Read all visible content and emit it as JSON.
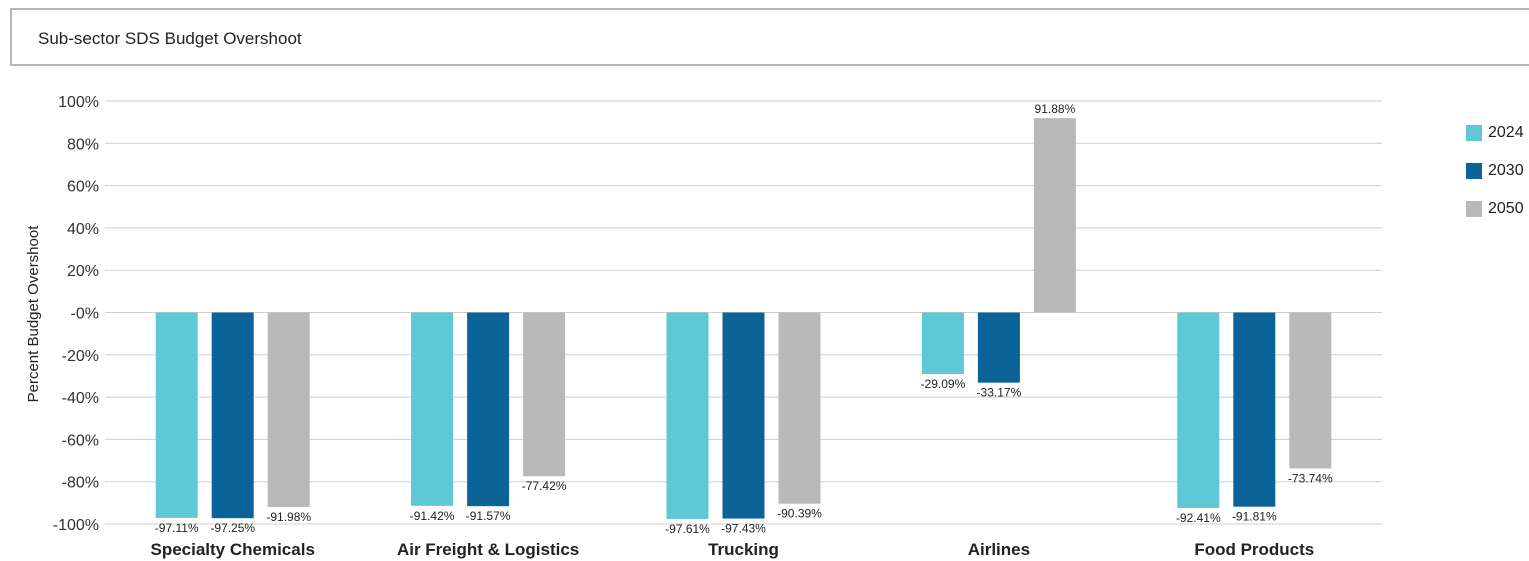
{
  "panel": {
    "title": "Sub-sector SDS Budget Overshoot"
  },
  "colors": {
    "2024": "#5ec8d6",
    "2030": "#0c6398",
    "2050": "#b9b9b9",
    "grid": "#cfcfcf"
  },
  "chart_data": {
    "type": "bar",
    "title": "Sub-sector SDS Budget Overshoot",
    "xlabel": "",
    "ylabel": "Percent Budget Overshoot",
    "ylim": [
      -100,
      100
    ],
    "y_ticks": [
      "100%",
      "80%",
      "60%",
      "40%",
      "20%",
      "-0%",
      "-20%",
      "-40%",
      "-60%",
      "-80%",
      "-100%"
    ],
    "grid": true,
    "legend_position": "right",
    "categories": [
      "Specialty Chemicals",
      "Air Freight & Logistics",
      "Trucking",
      "Airlines",
      "Food Products"
    ],
    "series": [
      {
        "name": "2024",
        "values": [
          -97.11,
          -91.42,
          -97.61,
          -29.09,
          -92.41
        ],
        "labels": [
          "-97.11%",
          "-91.42%",
          "-97.61%",
          "-29.09%",
          "-92.41%"
        ]
      },
      {
        "name": "2030",
        "values": [
          -97.25,
          -91.57,
          -97.43,
          -33.17,
          -91.81
        ],
        "labels": [
          "-97.25%",
          "-91.57%",
          "-97.43%",
          "-33.17%",
          "-91.81%"
        ]
      },
      {
        "name": "2050",
        "values": [
          -91.98,
          -77.42,
          -90.39,
          91.88,
          -73.74
        ],
        "labels": [
          "-91.98%",
          "-77.42%",
          "-90.39%",
          "91.88%",
          "-73.74%"
        ]
      }
    ]
  }
}
